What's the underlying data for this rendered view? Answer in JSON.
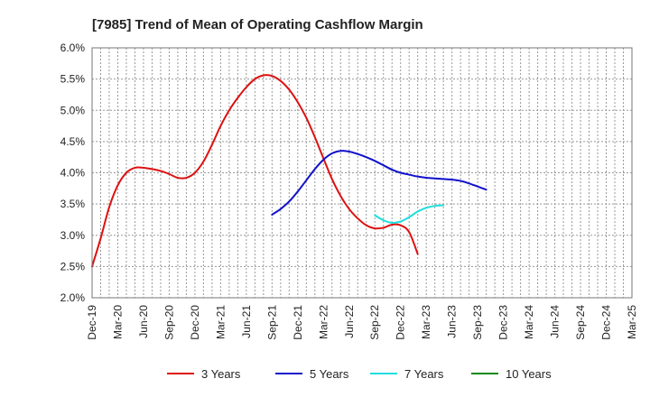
{
  "chart_data": {
    "type": "line",
    "title": "[7985]  Trend of Mean of Operating Cashflow Margin",
    "xlabel": "",
    "ylabel": "",
    "y_unit": "%",
    "ylim": [
      2.0,
      6.0
    ],
    "y_ticks": [
      2.0,
      2.5,
      3.0,
      3.5,
      4.0,
      4.5,
      5.0,
      5.5,
      6.0
    ],
    "y_tick_labels": [
      "2.0%",
      "2.5%",
      "3.0%",
      "3.5%",
      "4.0%",
      "4.5%",
      "5.0%",
      "5.5%",
      "6.0%"
    ],
    "x_ticks": [
      "Dec-19",
      "Mar-20",
      "Jun-20",
      "Sep-20",
      "Dec-20",
      "Mar-21",
      "Jun-21",
      "Sep-21",
      "Dec-21",
      "Mar-22",
      "Jun-22",
      "Sep-22",
      "Dec-22",
      "Mar-23",
      "Jun-23",
      "Sep-23",
      "Dec-23",
      "Mar-24",
      "Jun-24",
      "Sep-24",
      "Dec-24",
      "Mar-25"
    ],
    "grid": true,
    "legend_position": "bottom",
    "series": [
      {
        "name": "3 Years",
        "color": "#dd1111",
        "start_index": 0,
        "values": [
          2.5,
          2.95,
          3.45,
          3.8,
          4.0,
          4.08,
          4.08,
          4.06,
          4.03,
          3.98,
          3.92,
          3.92,
          4.0,
          4.18,
          4.45,
          4.75,
          5.0,
          5.2,
          5.37,
          5.5,
          5.56,
          5.55,
          5.47,
          5.33,
          5.13,
          4.88,
          4.57,
          4.23,
          3.9,
          3.63,
          3.42,
          3.27,
          3.16,
          3.11,
          3.12,
          3.17,
          3.16,
          3.05,
          2.7
        ]
      },
      {
        "name": "5 Years",
        "color": "#1111cc",
        "start_index": 21,
        "values": [
          3.33,
          3.42,
          3.54,
          3.7,
          3.88,
          4.06,
          4.21,
          4.31,
          4.35,
          4.34,
          4.3,
          4.25,
          4.19,
          4.12,
          4.05,
          4.0,
          3.97,
          3.94,
          3.92,
          3.91,
          3.9,
          3.89,
          3.87,
          3.83,
          3.78,
          3.73
        ]
      },
      {
        "name": "7 Years",
        "color": "#22dddd",
        "start_index": 33,
        "values": [
          3.32,
          3.24,
          3.2,
          3.22,
          3.29,
          3.38,
          3.44,
          3.47,
          3.48
        ]
      },
      {
        "name": "10 Years",
        "color": "#118811",
        "start_index": 0,
        "values": []
      }
    ]
  }
}
